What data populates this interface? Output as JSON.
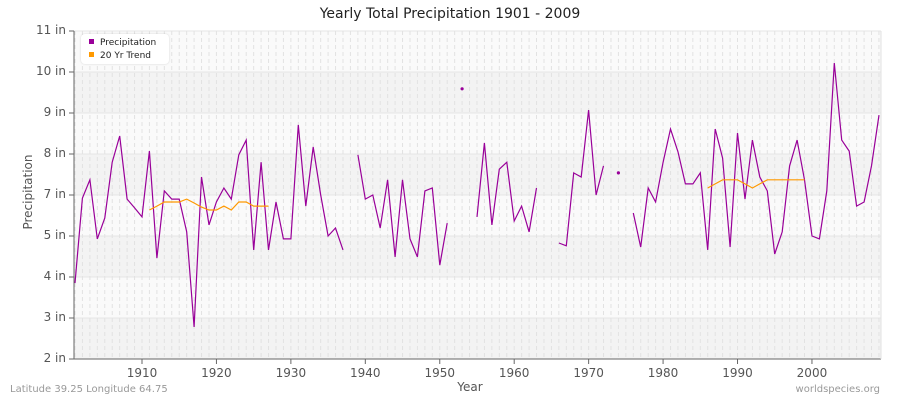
{
  "title": "Yearly Total Precipitation 1901 - 2009",
  "footer": {
    "left": "Latitude 39.25 Longitude 64.75",
    "right": "worldspecies.org"
  },
  "legend": [
    {
      "label": "Precipitation",
      "color": "#990099"
    },
    {
      "label": "20 Yr Trend",
      "color": "#ff9900"
    }
  ],
  "chart_data": {
    "type": "line",
    "title": "Yearly Total Precipitation 1901 - 2009",
    "xlabel": "Year",
    "ylabel": "Precipitation",
    "x_ticks": [
      "1910",
      "1920",
      "1930",
      "1940",
      "1950",
      "1960",
      "1970",
      "1980",
      "1990",
      "2000"
    ],
    "y_ticks": [
      "11 in",
      "10 in",
      "9 in",
      "8 in",
      "7 in",
      "5 in",
      "4 in",
      "3 in",
      "2 in"
    ],
    "xlim": [
      1901,
      2009
    ],
    "ylim": [
      2,
      11
    ],
    "grid": true,
    "legend_position": "top-left",
    "series": [
      {
        "name": "Precipitation",
        "color": "#990099",
        "x": [
          1901,
          1902,
          1903,
          1904,
          1905,
          1906,
          1907,
          1908,
          1909,
          1910,
          1911,
          1912,
          1913,
          1914,
          1915,
          1916,
          1917,
          1918,
          1919,
          1920,
          1921,
          1922,
          1923,
          1924,
          1925,
          1926,
          1927,
          1928,
          1929,
          1930,
          1931,
          1932,
          1933,
          1934,
          1935,
          1936,
          1937,
          1938,
          1939,
          1940,
          1941,
          1942,
          1943,
          1944,
          1945,
          1946,
          1947,
          1948,
          1949,
          1950,
          1951,
          1952,
          1953,
          1954,
          1955,
          1956,
          1957,
          1958,
          1959,
          1960,
          1961,
          1962,
          1963,
          1964,
          1965,
          1966,
          1967,
          1968,
          1969,
          1970,
          1971,
          1972,
          1973,
          1974,
          1975,
          1976,
          1977,
          1978,
          1979,
          1980,
          1981,
          1982,
          1983,
          1984,
          1985,
          1986,
          1987,
          1988,
          1989,
          1990,
          1991,
          1992,
          1993,
          1994,
          1995,
          1996,
          1997,
          1998,
          1999,
          2000,
          2001,
          2002,
          2003,
          2004,
          2005,
          2006,
          2007,
          2008,
          2009
        ],
        "values": [
          3.85,
          6.85,
          7.37,
          4.93,
          5.88,
          7.8,
          8.44,
          6.8,
          6.37,
          5.93,
          8.07,
          4.46,
          7.1,
          6.8,
          6.8,
          5.2,
          2.78,
          7.44,
          5.54,
          6.66,
          7.17,
          6.8,
          7.98,
          8.34,
          4.66,
          7.8,
          4.66,
          6.66,
          4.93,
          4.93,
          8.71,
          6.46,
          8.17,
          7.0,
          5.0,
          5.39,
          4.66,
          null,
          7.98,
          6.8,
          7.0,
          5.39,
          7.37,
          4.49,
          7.37,
          4.93,
          4.49,
          7.1,
          7.17,
          4.29,
          5.63,
          null,
          9.59,
          null,
          5.93,
          8.27,
          5.54,
          7.63,
          7.8,
          5.73,
          6.46,
          5.2,
          7.17,
          null,
          null,
          4.83,
          4.76,
          7.54,
          7.44,
          9.07,
          7.0,
          7.71,
          null,
          7.54,
          null,
          6.12,
          4.73,
          7.17,
          6.66,
          7.8,
          8.61,
          8.05,
          7.27,
          7.27,
          7.54,
          4.66,
          8.61,
          7.9,
          4.73,
          8.51,
          6.8,
          8.34,
          7.44,
          7.1,
          4.56,
          5.2,
          7.71,
          8.34,
          7.37,
          5.0,
          4.93,
          7.1,
          10.22,
          8.34,
          8.07,
          6.46,
          6.66,
          7.71,
          8.95
        ]
      },
      {
        "name": "20 Yr Trend",
        "color": "#ff9900",
        "segments": [
          {
            "x": [
              1911,
              1912,
              1913,
              1914,
              1915,
              1916,
              1917,
              1918,
              1919,
              1920,
              1921,
              1922,
              1923,
              1924,
              1925,
              1926,
              1927
            ],
            "values": [
              6.27,
              6.46,
              6.66,
              6.66,
              6.66,
              6.8,
              6.61,
              6.41,
              6.27,
              6.27,
              6.46,
              6.27,
              6.66,
              6.66,
              6.46,
              6.46,
              6.46
            ]
          },
          {
            "x": [
              1986,
              1987,
              1988,
              1989,
              1990,
              1991,
              1992,
              1993,
              1994,
              1995,
              1996,
              1997,
              1998,
              1999
            ],
            "values": [
              7.17,
              7.27,
              7.37,
              7.37,
              7.37,
              7.27,
              7.17,
              7.27,
              7.37,
              7.37,
              7.37,
              7.37,
              7.37,
              7.37
            ]
          }
        ]
      }
    ]
  }
}
